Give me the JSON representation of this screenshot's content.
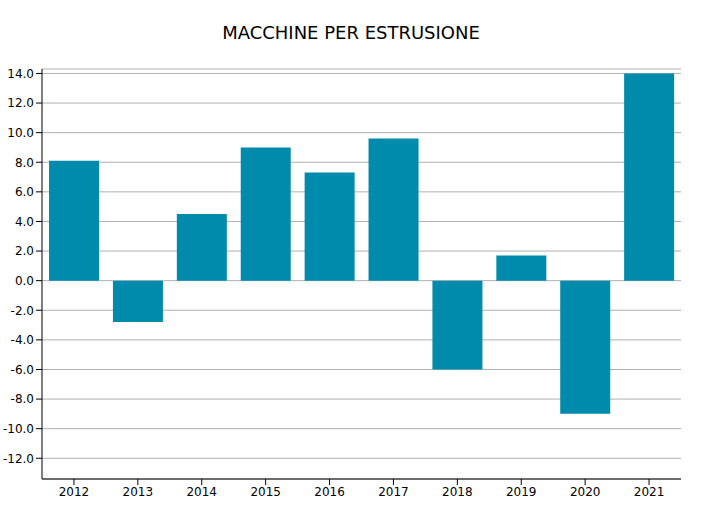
{
  "chart_data": {
    "type": "bar",
    "title": "MACCHINE PER ESTRUSIONE",
    "categories": [
      "2012",
      "2013",
      "2014",
      "2015",
      "2016",
      "2017",
      "2018",
      "2019",
      "2020",
      "2021"
    ],
    "values": [
      8.1,
      -2.8,
      4.5,
      9.0,
      7.3,
      9.6,
      -6.0,
      1.7,
      -9.0,
      14.0
    ],
    "color": "#008aab",
    "ylim": [
      -13.4,
      14.3
    ],
    "yticks": [
      {
        "value": -12,
        "label": "-12.0"
      },
      {
        "value": -10,
        "label": "-10.0"
      },
      {
        "value": -8,
        "label": "-8.0"
      },
      {
        "value": -6,
        "label": "-6.0"
      },
      {
        "value": -4,
        "label": "-4.0"
      },
      {
        "value": -2,
        "label": "-2.0"
      },
      {
        "value": 0,
        "label": "0.0"
      },
      {
        "value": 2,
        "label": "2.0"
      },
      {
        "value": 4,
        "label": "4.0"
      },
      {
        "value": 6,
        "label": "6.0"
      },
      {
        "value": 8,
        "label": "8.0"
      },
      {
        "value": 10,
        "label": "10.0"
      },
      {
        "value": 12,
        "label": "12.0"
      },
      {
        "value": 14,
        "label": "14.0"
      }
    ],
    "grid": true
  }
}
